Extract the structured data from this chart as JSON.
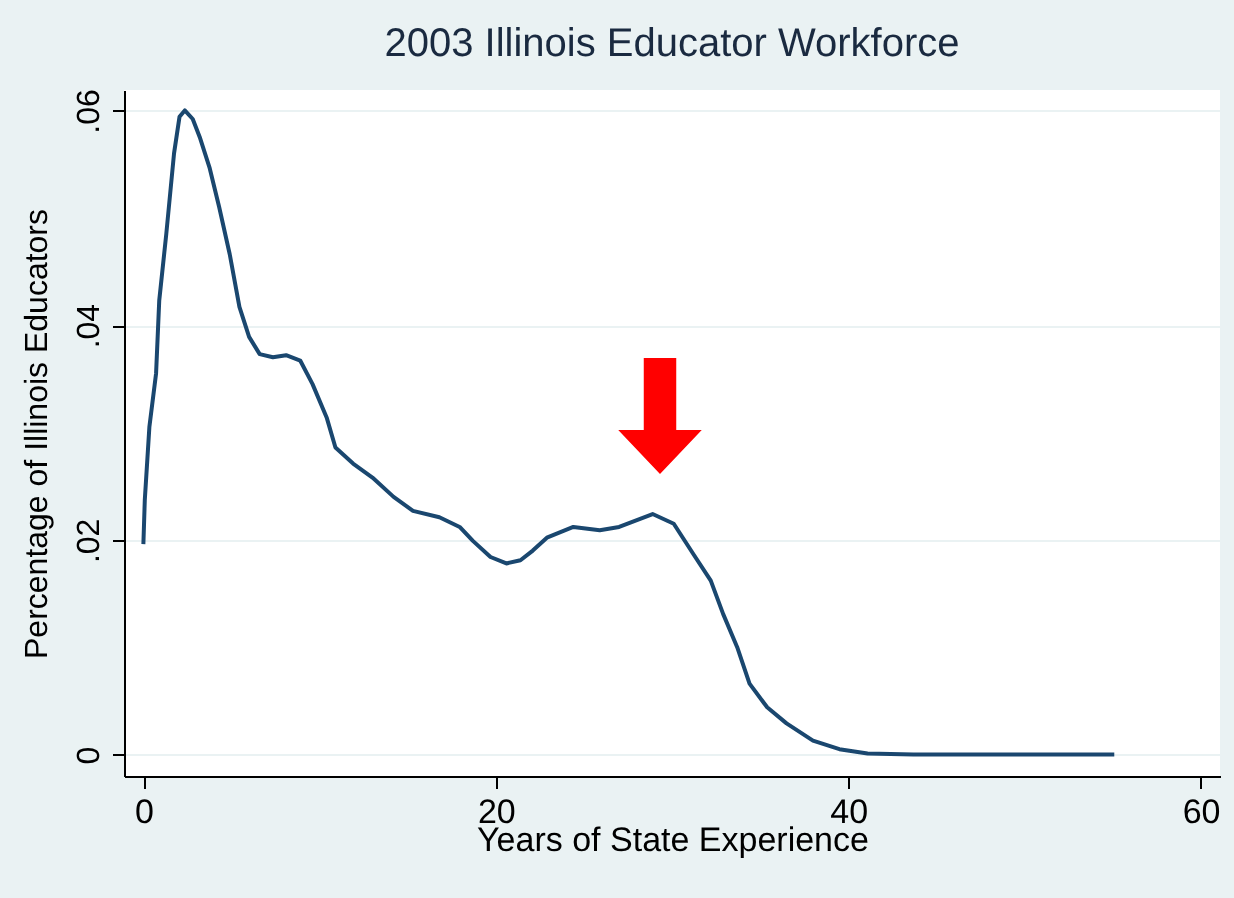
{
  "chart_data": {
    "type": "line",
    "title": "2003 Illinois Educator Workforce",
    "xlabel": "Years of State Experience",
    "ylabel": "Percentage of Illinois Educators",
    "x": [
      0,
      0.08,
      0.34,
      0.72,
      0.9,
      1.3,
      1.74,
      2.05,
      2.35,
      2.8,
      3.2,
      3.75,
      4.3,
      4.9,
      5.45,
      6.0,
      6.6,
      7.35,
      8.1,
      8.9,
      9.6,
      10.4,
      10.9,
      11.9,
      13.0,
      14.2,
      15.3,
      16.8,
      17.95,
      18.7,
      19.7,
      20.6,
      21.4,
      22.1,
      22.9,
      24.4,
      25.9,
      27.0,
      28.9,
      30.1,
      31.2,
      32.2,
      32.9,
      33.7,
      34.4,
      35.4,
      36.5,
      38.0,
      39.5,
      41.1,
      43.7,
      55.1
    ],
    "series": [
      {
        "color": "#1a476f",
        "values": [
          0.0196,
          0.0237,
          0.0305,
          0.0355,
          0.0423,
          0.0485,
          0.056,
          0.0594,
          0.06,
          0.0592,
          0.0575,
          0.0547,
          0.051,
          0.0466,
          0.0417,
          0.0389,
          0.0373,
          0.037,
          0.0372,
          0.0367,
          0.0345,
          0.0314,
          0.0286,
          0.0271,
          0.0258,
          0.024,
          0.0227,
          0.0221,
          0.0212,
          0.0199,
          0.0184,
          0.0178,
          0.0181,
          0.019,
          0.0202,
          0.0212,
          0.0209,
          0.0212,
          0.0224,
          0.0215,
          0.0187,
          0.0162,
          0.0131,
          0.01,
          0.0066,
          0.0044,
          0.0029,
          0.0013,
          0.0005,
          0.0001,
          0,
          0
        ]
      }
    ],
    "xlim": [
      -1.1,
      61.1
    ],
    "xticks": [
      0,
      20,
      40,
      60
    ],
    "ylim": [
      -0.002,
      0.0619
    ],
    "yticks": [
      0,
      {
        "value": 0.02,
        "label": ".02"
      },
      {
        "value": 0.04,
        "label": ".04"
      },
      {
        "value": 0.06,
        "label": ".06"
      }
    ],
    "grid": "y",
    "marker": "none",
    "line_style": "solid"
  }
}
